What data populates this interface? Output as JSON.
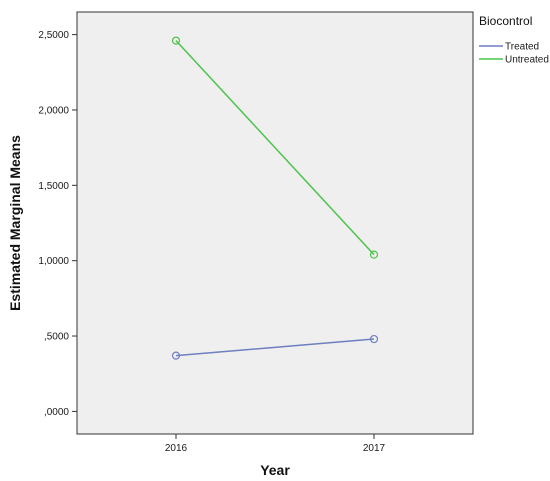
{
  "chart_data": {
    "type": "line",
    "title": "",
    "xlabel": "Year",
    "ylabel": "Estimated Marginal Means",
    "categories": [
      "2016",
      "2017"
    ],
    "ylim": [
      -0.15,
      2.65
    ],
    "yticks": [
      0,
      0.5,
      1.0,
      1.5,
      2.0,
      2.5
    ],
    "ytick_labels": [
      ",0000",
      ",5000",
      "1,0000",
      "1,5000",
      "2,0000",
      "2,5000"
    ],
    "grid": false,
    "legend": {
      "title": "Biocontrol",
      "placement": "right, outside plot area"
    },
    "series": [
      {
        "name": "Treated",
        "values": [
          0.37,
          0.48
        ],
        "color": "#6f7fc0"
      },
      {
        "name": "Untreated",
        "values": [
          2.46,
          1.04
        ],
        "color": "#4cc44c"
      }
    ],
    "colors": {
      "plot_background": "#efefef",
      "frame": "#333333"
    }
  }
}
